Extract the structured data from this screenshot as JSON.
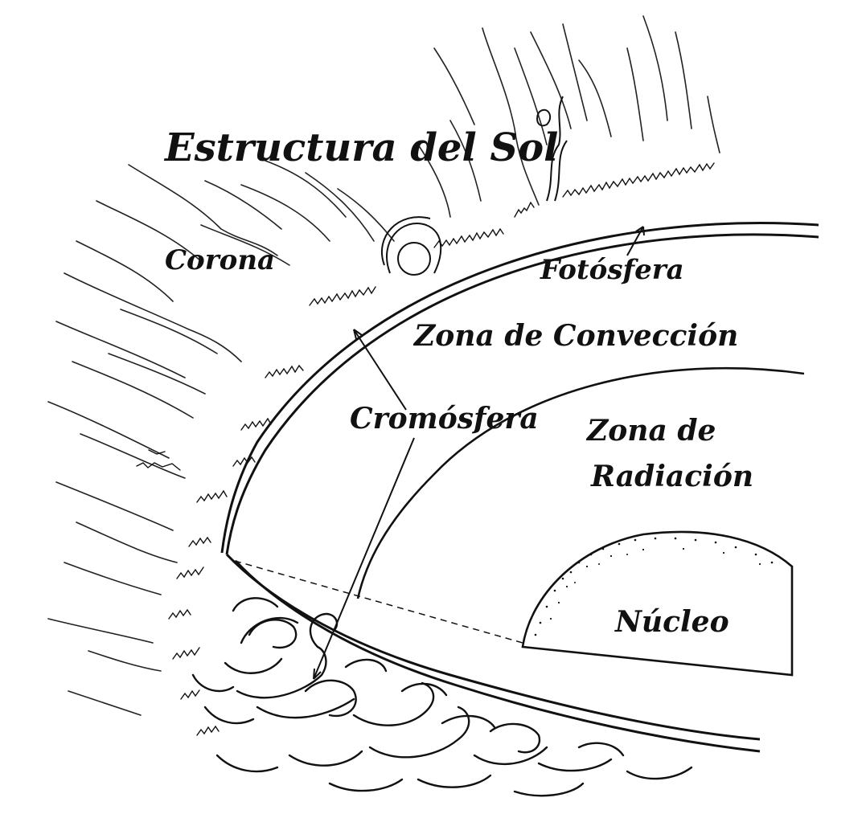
{
  "title": "Estructura del Sol",
  "labels": {
    "corona": "Corona",
    "fotosfera": "Fotósfera",
    "zona_conveccion": "Zona de Convección",
    "cromosfera": "Cromósfera",
    "zona_radiacion_line1": "Zona de",
    "zona_radiacion_line2": "Radiación",
    "nucleo": "Núcleo"
  },
  "colors": {
    "ink": "#111111",
    "background": "#ffffff"
  }
}
